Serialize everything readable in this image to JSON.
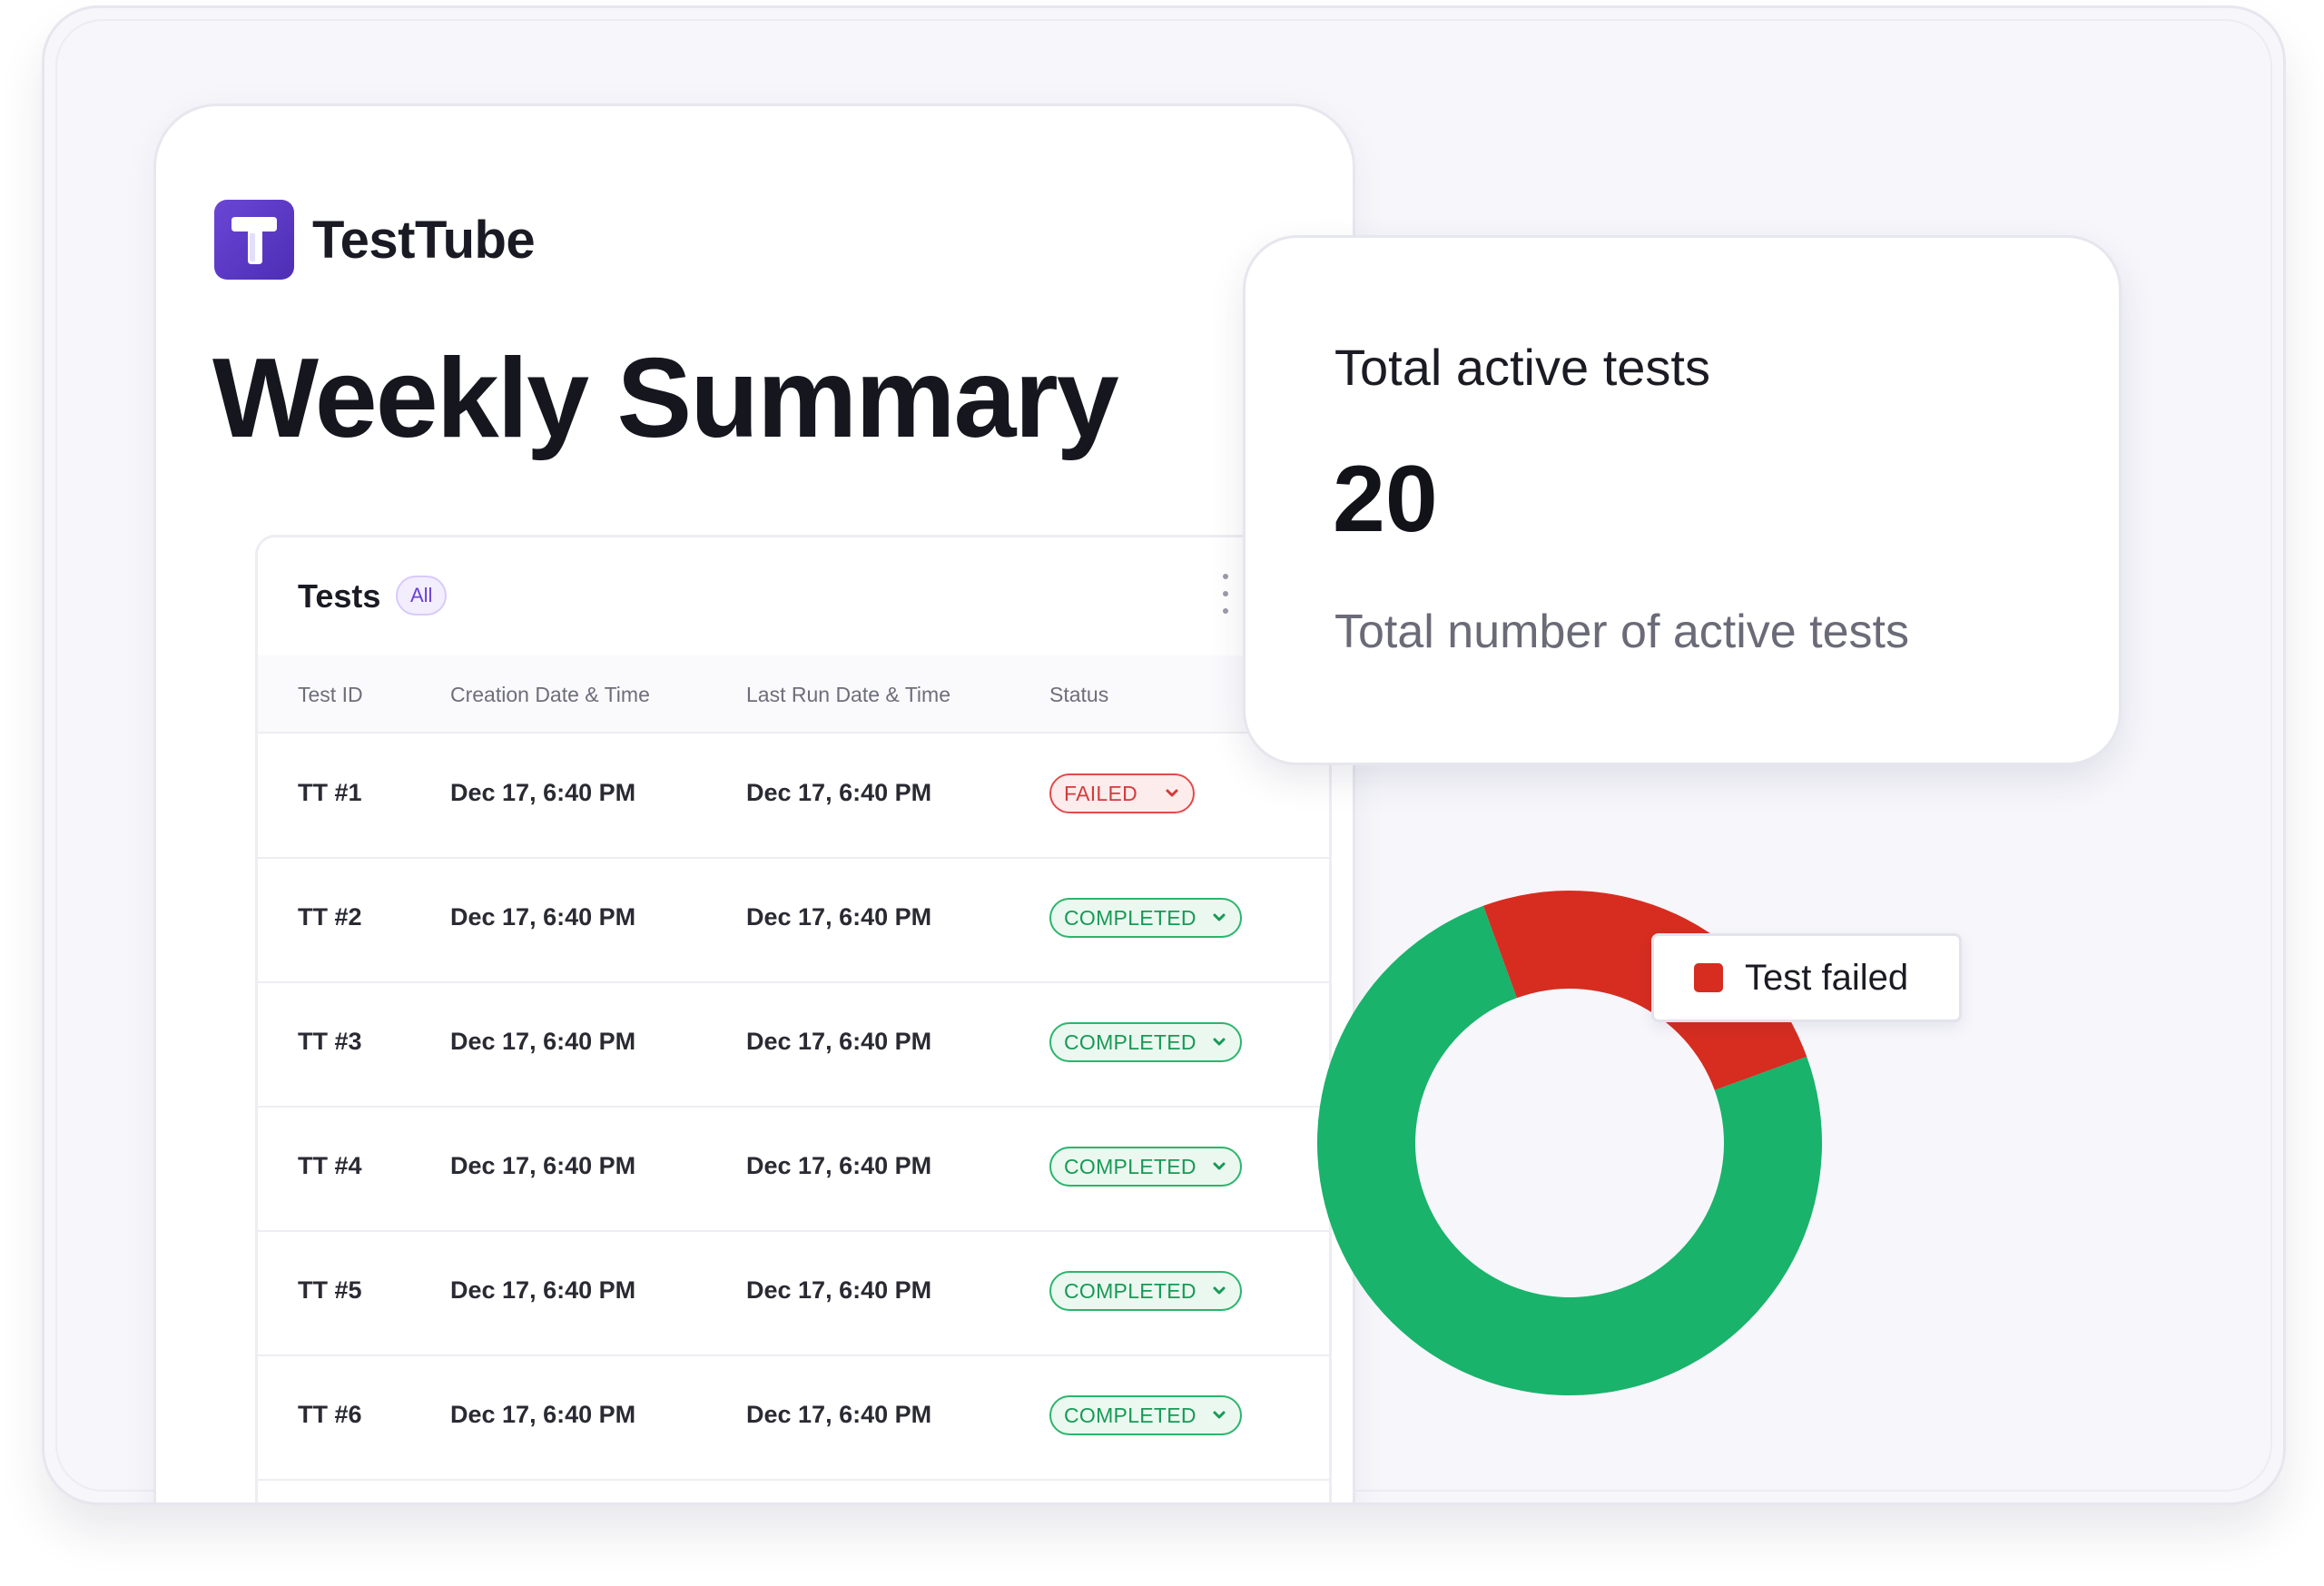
{
  "app": {
    "name": "TestTube",
    "logo_icon": "testtube-logo-icon",
    "brand_color": "#5b3cc8"
  },
  "page": {
    "title": "Weekly Summary"
  },
  "tests_table": {
    "title": "Tests",
    "filter_badge": "All",
    "menu_icon": "more-vertical-icon",
    "columns": [
      "Test ID",
      "Creation Date & Time",
      "Last Run Date & Time",
      "Status"
    ],
    "rows": [
      {
        "id": "TT #1",
        "created": "Dec 17, 6:40 PM",
        "last_run": "Dec 17, 6:40 PM",
        "status": "FAILED"
      },
      {
        "id": "TT #2",
        "created": "Dec 17, 6:40 PM",
        "last_run": "Dec 17, 6:40 PM",
        "status": "COMPLETED"
      },
      {
        "id": "TT #3",
        "created": "Dec 17, 6:40 PM",
        "last_run": "Dec 17, 6:40 PM",
        "status": "COMPLETED"
      },
      {
        "id": "TT #4",
        "created": "Dec 17, 6:40 PM",
        "last_run": "Dec 17, 6:40 PM",
        "status": "COMPLETED"
      },
      {
        "id": "TT #5",
        "created": "Dec 17, 6:40 PM",
        "last_run": "Dec 17, 6:40 PM",
        "status": "COMPLETED"
      },
      {
        "id": "TT #6",
        "created": "Dec 17, 6:40 PM",
        "last_run": "Dec 17, 6:40 PM",
        "status": "COMPLETED"
      }
    ],
    "status_colors": {
      "FAILED": "#e14a4a",
      "COMPLETED": "#2bb56c"
    }
  },
  "stat_card": {
    "title": "Total active tests",
    "value": "20",
    "description": "Total number of active tests"
  },
  "chart_data": {
    "type": "pie",
    "variant": "donut",
    "series": [
      {
        "value": 0.25,
        "color": "#d62d20"
      },
      {
        "value": 0.75,
        "color": "#19b36b"
      }
    ],
    "legend": [
      {
        "label": "Test failed",
        "color": "#d62d20"
      }
    ]
  }
}
